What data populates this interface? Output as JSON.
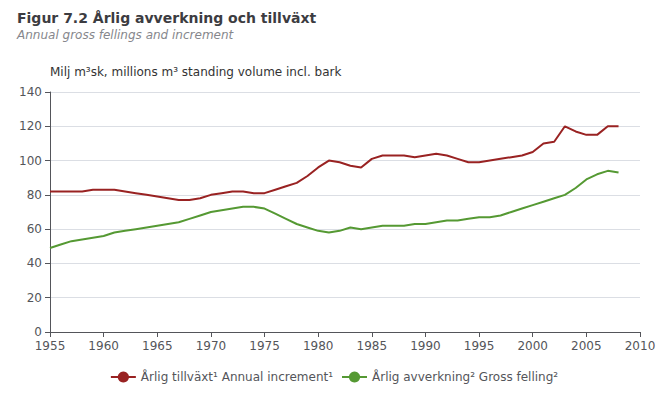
{
  "chart_data": {
    "type": "line",
    "title": "Figur 7.2 Årlig avverkning och tillväxt",
    "subtitle": "Annual gross fellings and increment",
    "ylabel": "Milj m³sk, millions m³ standing volume incl. bark",
    "x": [
      1955,
      1956,
      1957,
      1958,
      1959,
      1960,
      1961,
      1962,
      1963,
      1964,
      1965,
      1966,
      1967,
      1968,
      1969,
      1970,
      1971,
      1972,
      1973,
      1974,
      1975,
      1976,
      1977,
      1978,
      1979,
      1980,
      1981,
      1982,
      1983,
      1984,
      1985,
      1986,
      1987,
      1988,
      1989,
      1990,
      1991,
      1992,
      1993,
      1994,
      1995,
      1996,
      1997,
      1998,
      1999,
      2000,
      2001,
      2002,
      2003,
      2004,
      2005,
      2006,
      2007,
      2008
    ],
    "series": [
      {
        "name": "Årlig tillväxt¹ Annual increment¹",
        "color": "#992222",
        "values": [
          82,
          82,
          82,
          82,
          83,
          83,
          83,
          82,
          81,
          80,
          79,
          78,
          77,
          77,
          78,
          80,
          81,
          82,
          82,
          81,
          81,
          83,
          85,
          87,
          91,
          96,
          100,
          99,
          97,
          96,
          101,
          103,
          103,
          103,
          102,
          103,
          104,
          103,
          101,
          99,
          99,
          100,
          101,
          102,
          103,
          105,
          110,
          111,
          120,
          117,
          115,
          115,
          120,
          120
        ]
      },
      {
        "name": "Årlig avverkning² Gross felling²",
        "color": "#559933",
        "values": [
          49,
          51,
          53,
          54,
          55,
          56,
          58,
          59,
          60,
          61,
          62,
          63,
          64,
          66,
          68,
          70,
          71,
          72,
          73,
          73,
          72,
          69,
          66,
          63,
          61,
          59,
          58,
          59,
          61,
          60,
          61,
          62,
          62,
          62,
          63,
          63,
          64,
          65,
          65,
          66,
          67,
          67,
          68,
          70,
          72,
          74,
          76,
          78,
          80,
          84,
          89,
          92,
          94,
          93
        ]
      }
    ],
    "xlim": [
      1955,
      2010
    ],
    "xticks": [
      1955,
      1960,
      1965,
      1970,
      1975,
      1980,
      1985,
      1990,
      1995,
      2000,
      2005,
      2010
    ],
    "ylim": [
      0,
      140
    ],
    "yticks": [
      0,
      20,
      40,
      60,
      80,
      100,
      120,
      140
    ],
    "grid": true,
    "legend": "bottom"
  }
}
